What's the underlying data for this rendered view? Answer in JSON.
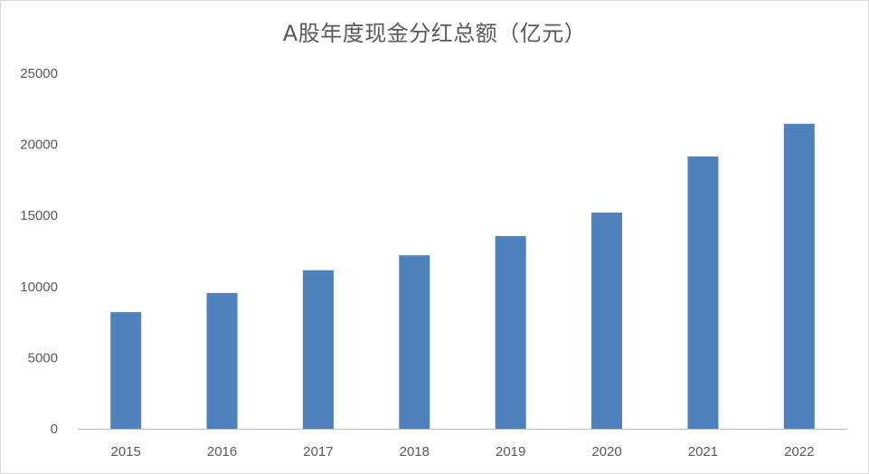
{
  "chart_data": {
    "type": "bar",
    "title": "A股年度现金分红总额（亿元）",
    "xlabel": "",
    "ylabel": "",
    "categories": [
      "2015",
      "2016",
      "2017",
      "2018",
      "2019",
      "2020",
      "2021",
      "2022"
    ],
    "series": [
      {
        "values": [
          8200,
          9550,
          11150,
          12200,
          13550,
          15200,
          19150,
          21450
        ]
      }
    ],
    "ylim": [
      0,
      25000
    ],
    "yticks": [
      0,
      5000,
      10000,
      15000,
      20000,
      25000
    ],
    "grid": false,
    "legend": "none",
    "colors": {
      "bar": "#4f81bd",
      "axis": "#bfbfbf",
      "text": "#595959"
    }
  }
}
